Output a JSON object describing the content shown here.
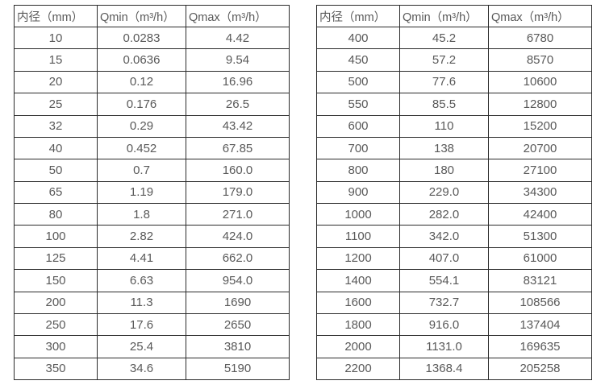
{
  "colors": {
    "border": "#2b2b2b",
    "text": "#595959",
    "background": "#ffffff"
  },
  "tables": [
    {
      "name": "flow-spec-table-small-diameters",
      "headers": [
        "内径（mm）",
        "Qmin（m³/h）",
        "Qmax（m³/h）"
      ],
      "rows": [
        [
          "10",
          "0.0283",
          "4.42"
        ],
        [
          "15",
          "0.0636",
          "9.54"
        ],
        [
          "20",
          "0.12",
          "16.96"
        ],
        [
          "25",
          "0.176",
          "26.5"
        ],
        [
          "32",
          "0.29",
          "43.42"
        ],
        [
          "40",
          "0.452",
          "67.85"
        ],
        [
          "50",
          "0.7",
          "160.0"
        ],
        [
          "65",
          "1.19",
          "179.0"
        ],
        [
          "80",
          "1.8",
          "271.0"
        ],
        [
          "100",
          "2.82",
          "424.0"
        ],
        [
          "125",
          "4.41",
          "662.0"
        ],
        [
          "150",
          "6.63",
          "954.0"
        ],
        [
          "200",
          "11.3",
          "1690"
        ],
        [
          "250",
          "17.6",
          "2650"
        ],
        [
          "300",
          "25.4",
          "3810"
        ],
        [
          "350",
          "34.6",
          "5190"
        ]
      ]
    },
    {
      "name": "flow-spec-table-large-diameters",
      "headers": [
        "内径（mm）",
        "Qmin（m³/h）",
        "Qmax（m³/h）"
      ],
      "rows": [
        [
          "400",
          "45.2",
          "6780"
        ],
        [
          "450",
          "57.2",
          "8570"
        ],
        [
          "500",
          "77.6",
          "10600"
        ],
        [
          "550",
          "85.5",
          "12800"
        ],
        [
          "600",
          "110",
          "15200"
        ],
        [
          "700",
          "138",
          "20700"
        ],
        [
          "800",
          "180",
          "27100"
        ],
        [
          "900",
          "229.0",
          "34300"
        ],
        [
          "1000",
          "282.0",
          "42400"
        ],
        [
          "1100",
          "342.0",
          "51300"
        ],
        [
          "1200",
          "407.0",
          "61000"
        ],
        [
          "1400",
          "554.1",
          "83121"
        ],
        [
          "1600",
          "732.7",
          "108566"
        ],
        [
          "1800",
          "916.0",
          "137404"
        ],
        [
          "2000",
          "1131.0",
          "169635"
        ],
        [
          "2200",
          "1368.4",
          "205258"
        ]
      ]
    }
  ]
}
